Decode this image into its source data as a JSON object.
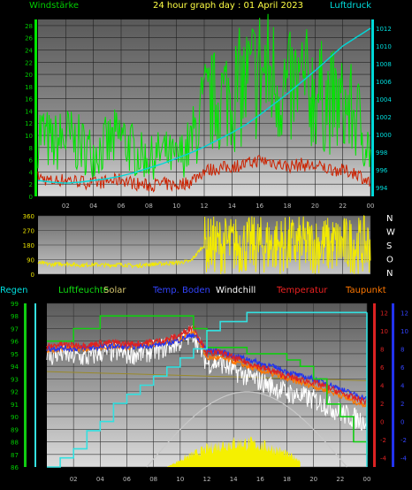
{
  "header": {
    "title": "24 hour graph day : 01 April 2023",
    "left_label": "Windstärke",
    "right_label": "Luftdruck"
  },
  "colors": {
    "wind": "#00e600",
    "gust": "#cc2200",
    "pressure": "#00d8d8",
    "direction": "#f2ea00",
    "humidity": "#11cc11",
    "solar": "#f5f000",
    "rain": "#33e0e0",
    "temperature": "#dd2222",
    "temp_ground": "#2233ee",
    "windchill": "#ffffff",
    "dewpoint": "#ff7700",
    "label_green": "#00cc00",
    "label_cyan": "#00dddd",
    "label_yellow": "#e8e000",
    "label_title": "#ffff44"
  },
  "x_ticks": [
    "02",
    "04",
    "06",
    "08",
    "10",
    "12",
    "14",
    "16",
    "18",
    "20",
    "22",
    "00"
  ],
  "chart_data": [
    {
      "type": "line",
      "title": "24 hour graph day : 01 April 2023",
      "x": [
        0,
        1,
        2,
        3,
        4,
        5,
        6,
        7,
        8,
        9,
        10,
        11,
        12,
        13,
        14,
        15,
        16,
        17,
        18,
        19,
        20,
        21,
        22,
        23,
        24
      ],
      "series": [
        {
          "name": "Windstärke",
          "axis": "left",
          "values": [
            9,
            7,
            8,
            7,
            6,
            7,
            8,
            6,
            5,
            6,
            5,
            7,
            12,
            13,
            14,
            15,
            17,
            16,
            14,
            15,
            14,
            13,
            12,
            11,
            6
          ]
        },
        {
          "name": "Luftdruck",
          "axis": "right",
          "values": [
            994.8,
            994.6,
            994.5,
            994.6,
            994.8,
            995.0,
            995.3,
            995.7,
            996.2,
            996.7,
            997.3,
            997.9,
            998.6,
            999.4,
            1000.2,
            1001.1,
            1002.2,
            1003.4,
            1004.6,
            1005.9,
            1007.2,
            1008.6,
            1010.0,
            1011.0,
            1012.0
          ]
        }
      ],
      "y_left_ticks": [
        "0",
        "2",
        "4",
        "6",
        "8",
        "10",
        "12",
        "14",
        "16",
        "18",
        "20",
        "22",
        "24",
        "26",
        "28"
      ],
      "y_right_ticks": [
        "994",
        "996",
        "998",
        "1000",
        "1002",
        "1004",
        "1006",
        "1008",
        "1010",
        "1012"
      ],
      "ylim_left": [
        0,
        29
      ],
      "ylim_right": [
        993,
        1013
      ],
      "grid": true
    },
    {
      "type": "scatter",
      "x": [
        0,
        1,
        2,
        3,
        4,
        5,
        6,
        7,
        8,
        9,
        10,
        11,
        12,
        13,
        14,
        15,
        16,
        17,
        18,
        19,
        20,
        21,
        22,
        23,
        24
      ],
      "series": [
        {
          "name": "direction",
          "values": [
            70,
            60,
            65,
            55,
            60,
            55,
            60,
            50,
            60,
            65,
            70,
            80,
            180,
            200,
            190,
            210,
            200,
            180,
            190,
            200,
            210,
            190,
            200,
            210,
            200
          ]
        }
      ],
      "y_ticks": [
        "0",
        "90",
        "180",
        "270",
        "360"
      ],
      "ylim": [
        0,
        360
      ],
      "compass": [
        "N",
        "W",
        "S",
        "O",
        "N"
      ],
      "grid": true
    },
    {
      "type": "line",
      "labels": [
        "Regen",
        "Luftfeuchte",
        "Solar",
        "Temp. Boden",
        "Windchill",
        "Temperatur",
        "Taupunkt"
      ],
      "x": [
        0,
        1,
        2,
        3,
        4,
        5,
        6,
        7,
        8,
        9,
        10,
        11,
        12,
        13,
        14,
        15,
        16,
        17,
        18,
        19,
        20,
        21,
        22,
        23,
        24
      ],
      "series": [
        {
          "name": "Temperatur",
          "axis": "right",
          "values": [
            8.2,
            8.5,
            8.4,
            8.4,
            8.6,
            8.7,
            8.5,
            8.6,
            8.8,
            9.0,
            9.5,
            10.5,
            7.5,
            7.6,
            7.0,
            6.5,
            6.0,
            5.5,
            5.0,
            4.6,
            4.3,
            3.8,
            3.2,
            2.6,
            2.2
          ]
        },
        {
          "name": "Temp. Boden",
          "axis": "right",
          "values": [
            8.0,
            8.1,
            8.0,
            8.1,
            8.2,
            8.3,
            8.2,
            8.3,
            8.4,
            8.6,
            9.0,
            9.6,
            7.8,
            7.7,
            7.2,
            6.9,
            6.4,
            6.0,
            5.5,
            5.0,
            4.7,
            4.2,
            3.6,
            3.0,
            2.5
          ]
        },
        {
          "name": "Taupunkt",
          "axis": "right",
          "values": [
            7.8,
            8.0,
            8.0,
            8.0,
            8.2,
            8.3,
            8.2,
            8.3,
            8.5,
            8.7,
            9.0,
            10.0,
            7.0,
            7.0,
            6.6,
            6.1,
            5.6,
            5.2,
            4.7,
            4.3,
            3.9,
            3.4,
            2.9,
            2.2,
            1.8
          ]
        },
        {
          "name": "Windchill",
          "axis": "right",
          "values": [
            7.0,
            7.5,
            7.2,
            7.0,
            7.6,
            7.7,
            7.4,
            7.5,
            7.8,
            8.2,
            8.8,
            9.8,
            6.4,
            6.5,
            5.6,
            5.0,
            4.4,
            3.8,
            3.2,
            2.8,
            2.4,
            1.8,
            1.0,
            0.4,
            0.0
          ]
        },
        {
          "name": "Luftfeuchte",
          "axis": "left",
          "values": [
            96,
            96,
            97,
            97,
            98,
            98,
            98,
            98,
            98,
            98,
            98,
            97,
            95.5,
            95.5,
            95.5,
            95,
            95,
            95,
            94.5,
            94,
            93,
            91,
            90,
            88,
            87
          ]
        },
        {
          "name": "Regen",
          "axis": "far_right",
          "values": [
            -5,
            -4,
            -3,
            -1,
            0,
            2,
            3,
            4,
            5,
            6,
            7,
            8,
            10,
            11,
            11,
            12,
            12,
            12,
            12,
            12,
            12,
            12,
            12,
            12,
            12
          ]
        },
        {
          "name": "Solar",
          "axis": "none",
          "values": [
            0,
            0,
            0,
            0,
            0,
            0,
            0,
            0,
            0,
            20,
            40,
            60,
            80,
            90,
            100,
            95,
            85,
            60,
            35,
            10,
            0,
            0,
            0,
            0,
            0
          ]
        }
      ],
      "y_left_ticks": [
        "86",
        "87",
        "88",
        "89",
        "90",
        "91",
        "92",
        "93",
        "94",
        "95",
        "96",
        "97",
        "98",
        "99"
      ],
      "y_right_ticks": [
        "-4",
        "-2",
        "0",
        "2",
        "4",
        "6",
        "8",
        "10",
        "12"
      ],
      "y_far_right_ticks": [
        "-4",
        "-2",
        "0",
        "2",
        "4",
        "6",
        "8",
        "10",
        "12"
      ],
      "ylim_left": [
        86,
        99
      ],
      "ylim_right": [
        -5,
        13
      ],
      "grid": true
    }
  ]
}
